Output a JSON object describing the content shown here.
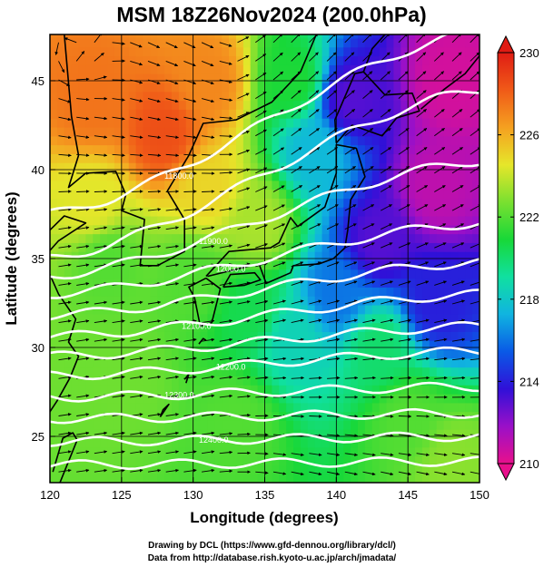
{
  "title": "MSM 18Z26Nov2024 (200.0hPa)",
  "credits": [
    "Drawing by DCL (https://www.gfd-dennou.org/library/dcl/)",
    "Data from http://database.rish.kyoto-u.ac.jp/arch/jmadata/"
  ],
  "chart_data": {
    "type": "heatmap",
    "title": "MSM 18Z26Nov2024 (200.0hPa)",
    "xlabel": "Longitude (degrees)",
    "ylabel": "Latitude  (degrees)",
    "xlim": [
      120,
      150
    ],
    "ylim": [
      22.4,
      47.6
    ],
    "xticks": [
      120,
      125,
      130,
      135,
      140,
      145,
      150
    ],
    "yticks": [
      25,
      30,
      35,
      40,
      45
    ],
    "grid": true,
    "colorbar": {
      "range": [
        210,
        230
      ],
      "ticks": [
        210,
        214,
        218,
        222,
        226,
        230
      ],
      "colors": [
        "#e8108c",
        "#9a10c8",
        "#3010d8",
        "#0a5ae6",
        "#10b4e0",
        "#10e0a0",
        "#18d838",
        "#7ae030",
        "#e6e62a",
        "#f5a020",
        "#f05a18",
        "#e01c14"
      ]
    },
    "field_anchors": [
      {
        "lon": 123,
        "lat": 44,
        "value": 227.5
      },
      {
        "lon": 128,
        "lat": 42,
        "value": 228.5
      },
      {
        "lon": 131,
        "lat": 45,
        "value": 227.0
      },
      {
        "lon": 123,
        "lat": 38,
        "value": 224.5
      },
      {
        "lon": 131,
        "lat": 39,
        "value": 225.0
      },
      {
        "lon": 124,
        "lat": 35,
        "value": 222.0
      },
      {
        "lon": 130,
        "lat": 34,
        "value": 222.0
      },
      {
        "lon": 134,
        "lat": 32,
        "value": 220.5
      },
      {
        "lon": 137,
        "lat": 30.5,
        "value": 218.5
      },
      {
        "lon": 125,
        "lat": 28,
        "value": 222.5
      },
      {
        "lon": 133,
        "lat": 26,
        "value": 222.0
      },
      {
        "lon": 145,
        "lat": 26,
        "value": 222.0
      },
      {
        "lon": 148,
        "lat": 23.5,
        "value": 223.0
      },
      {
        "lon": 143,
        "lat": 30,
        "value": 220.0
      },
      {
        "lon": 140,
        "lat": 33,
        "value": 216.0
      },
      {
        "lon": 147,
        "lat": 32.5,
        "value": 214.0
      },
      {
        "lon": 143,
        "lat": 36,
        "value": 213.0
      },
      {
        "lon": 147,
        "lat": 39,
        "value": 211.0
      },
      {
        "lon": 148,
        "lat": 45,
        "value": 210.5
      },
      {
        "lon": 141,
        "lat": 44,
        "value": 213.0
      },
      {
        "lon": 138.5,
        "lat": 41,
        "value": 217.5
      },
      {
        "lon": 137,
        "lat": 45,
        "value": 221.0
      },
      {
        "lon": 134.5,
        "lat": 37,
        "value": 223.5
      }
    ],
    "height_contours": [
      {
        "label": "11800.0",
        "lat_west": 37.5,
        "lat_east": 47.8
      },
      {
        "label": "",
        "lat_west": 35.0,
        "lat_east": 44.5
      },
      {
        "label": "11900.0",
        "lat_west": 34.0,
        "lat_east": 40.5
      },
      {
        "label": "12000.0",
        "lat_west": 33.0,
        "lat_east": 37.0
      },
      {
        "label": "",
        "lat_west": 31.8,
        "lat_east": 34.8
      },
      {
        "label": "12100.0",
        "lat_west": 30.6,
        "lat_east": 33.0
      },
      {
        "label": "",
        "lat_west": 29.5,
        "lat_east": 31.2
      },
      {
        "label": "12200.0",
        "lat_west": 28.4,
        "lat_east": 29.8
      },
      {
        "label": "12300.0",
        "lat_west": 27.2,
        "lat_east": 27.8
      },
      {
        "label": "",
        "lat_west": 26.0,
        "lat_east": 26.3
      },
      {
        "label": "12400.0",
        "lat_west": 24.7,
        "lat_east": 25.0
      },
      {
        "label": "",
        "lat_west": 23.4,
        "lat_east": 23.6
      }
    ],
    "contour_labels_shown": [
      "11800.0",
      "11900.0",
      "12000.0",
      "12100.0",
      "12200.0",
      "12300.0",
      "12400.0"
    ]
  }
}
